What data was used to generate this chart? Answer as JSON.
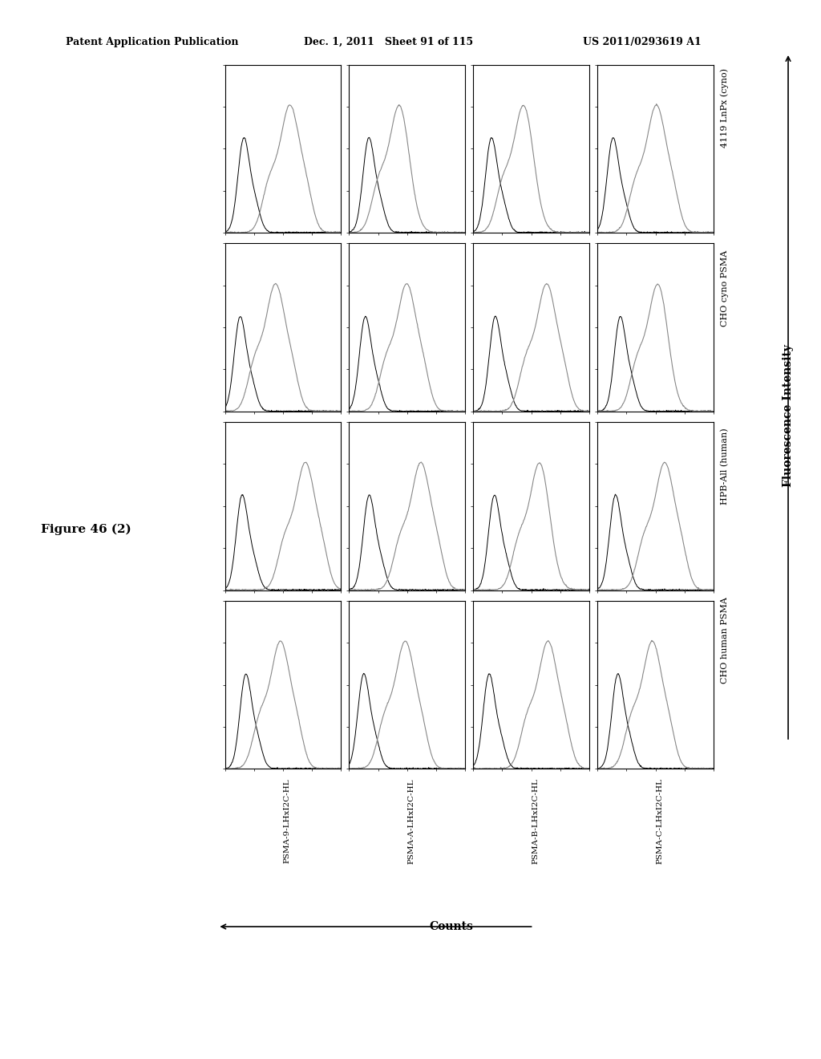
{
  "header_left": "Patent Application Publication",
  "header_middle": "Dec. 1, 2011   Sheet 91 of 115",
  "header_right": "US 2011/0293619 A1",
  "figure_label": "Figure 46 (2)",
  "col_labels": [
    "PSMA-9-LHxI2C-HL",
    "PSMA-A-LHxI2C-HL",
    "PSMA-B-LHxI2C-HL",
    "PSMA-C-LHxI2C-HL"
  ],
  "row_labels": [
    "CHO human PSMA",
    "HPB-All (human)",
    "CHO cyno PSMA",
    "4119 LnPx (cyno)"
  ],
  "x_axis_label": "Counts",
  "y_axis_label": "Fluorescence Intensity",
  "background_color": "#ffffff",
  "line_color_dark": "#000000",
  "line_color_gray": "#888888"
}
